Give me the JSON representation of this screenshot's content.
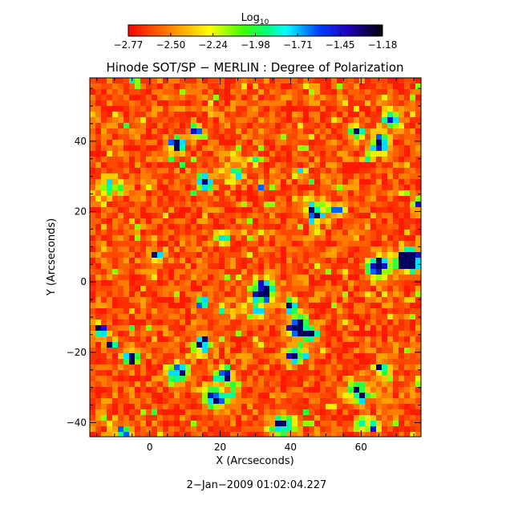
{
  "colorbar": {
    "label_main": "Log",
    "label_sub": "10",
    "tick_labels": [
      "−2.77",
      "−2.50",
      "−2.24",
      "−1.98",
      "−1.71",
      "−1.45",
      "−1.18"
    ],
    "range": [
      -2.77,
      -1.18
    ],
    "colormap": [
      "#ff0000",
      "#ff8000",
      "#ffff00",
      "#00ff00",
      "#00ffff",
      "#0000ff",
      "#000000"
    ]
  },
  "plot": {
    "title": "Hinode SOT/SP − MERLIN : Degree of Polarization",
    "x_axis_label": "X (Arcseconds)",
    "y_axis_label": "Y (Arcseconds)",
    "x_tick_labels": [
      "0",
      "20",
      "40",
      "60"
    ],
    "y_tick_labels": [
      "−40",
      "−20",
      "0",
      "20",
      "40"
    ],
    "x_range": [
      -17,
      77
    ],
    "y_range": [
      -44,
      58
    ]
  },
  "timestamp": "2−Jan−2009 01:02:04.227"
}
